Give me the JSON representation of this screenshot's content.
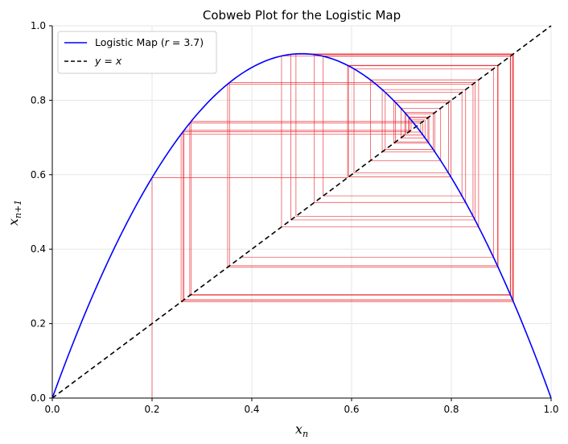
{
  "chart_data": {
    "type": "line",
    "title": "Cobweb Plot for the Logistic Map",
    "xlabel": "x",
    "xlabel_sub": "n",
    "ylabel": "x",
    "ylabel_sub": "n+1",
    "xlim": [
      0,
      1
    ],
    "ylim": [
      0,
      1
    ],
    "xticks": [
      0.0,
      0.2,
      0.4,
      0.6,
      0.8,
      1.0
    ],
    "yticks": [
      0.0,
      0.2,
      0.4,
      0.6,
      0.8,
      1.0
    ],
    "grid": true,
    "legend_position": "top-left",
    "r": 3.7,
    "x0": 0.2,
    "iterations": 50,
    "series": [
      {
        "name": "Logistic Map (r = 3.7)",
        "legend_prefix": "Logistic Map (",
        "legend_var": "r",
        "legend_suffix": " = 3.7)",
        "kind": "curve",
        "formula": "r*x*(1-x)",
        "color": "#0000ff",
        "style": "solid"
      },
      {
        "name": "y = x",
        "legend_y": "y",
        "legend_eq": " = ",
        "legend_x": "x",
        "kind": "identity",
        "color": "#000000",
        "style": "dashed"
      },
      {
        "kind": "cobweb",
        "color": "#e8262c",
        "style": "solid"
      }
    ]
  }
}
